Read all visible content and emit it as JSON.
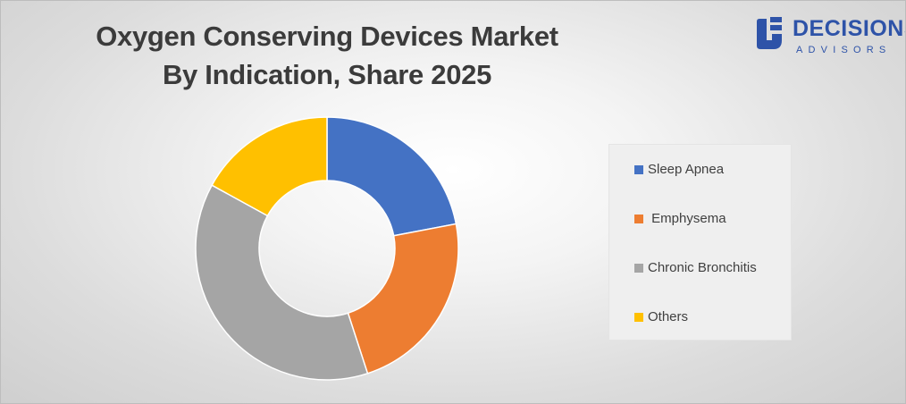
{
  "logo": {
    "word": "DECISIONS",
    "sub": "ADVISORS",
    "color": "#2e53a8"
  },
  "chart_data": {
    "type": "pie",
    "donut": true,
    "title": [
      "Oxygen Conserving Devices Market",
      "By Indication, Share 2025"
    ],
    "categories": [
      "Sleep Apnea",
      " Emphysema",
      "Chronic Bronchitis",
      "Others"
    ],
    "values": [
      22,
      23,
      38,
      17
    ],
    "colors": [
      "#4472c4",
      "#ed7d31",
      "#a5a5a5",
      "#ffc000"
    ],
    "legend_position": "right"
  }
}
